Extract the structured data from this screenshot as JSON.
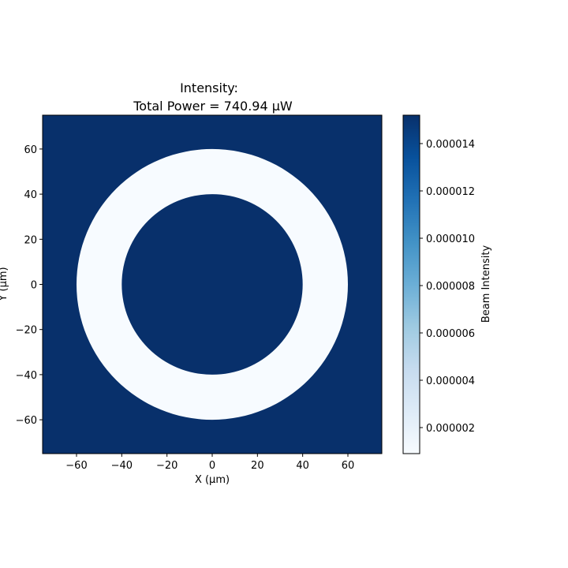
{
  "chart_data": {
    "type": "heatmap",
    "title_line1": "Intensity:",
    "title_line2": "Total Power = 740.94 μW",
    "xlabel": "X (μm)",
    "ylabel": "Y (μm)",
    "xlim": [
      -75,
      75
    ],
    "ylim": [
      -75,
      75
    ],
    "x_ticks": [
      -60,
      -40,
      -20,
      0,
      20,
      40,
      60
    ],
    "y_ticks": [
      -60,
      -40,
      -20,
      0,
      20,
      40,
      60
    ],
    "x_tick_labels": [
      "−60",
      "−40",
      "−20",
      "0",
      "20",
      "40",
      "60"
    ],
    "y_tick_labels": [
      "−60",
      "−40",
      "−20",
      "0",
      "20",
      "40",
      "60"
    ],
    "pattern": {
      "shape": "annulus",
      "center": [
        0,
        0
      ],
      "inner_radius": 40,
      "outer_radius": 60,
      "ring_value": 9e-07,
      "background_value": 1.52e-05
    },
    "colorbar": {
      "label": "Beam Intensity",
      "colormap": "Blues",
      "vmin": 9e-07,
      "vmax": 1.52e-05,
      "ticks": [
        2e-06,
        4e-06,
        6e-06,
        8e-06,
        1e-05,
        1.2e-05,
        1.4e-05
      ],
      "tick_labels": [
        "0.000002",
        "0.000004",
        "0.000006",
        "0.000008",
        "0.000010",
        "0.000012",
        "0.000014"
      ]
    },
    "colors": {
      "low": "#f7fbff",
      "high": "#08306b"
    }
  }
}
